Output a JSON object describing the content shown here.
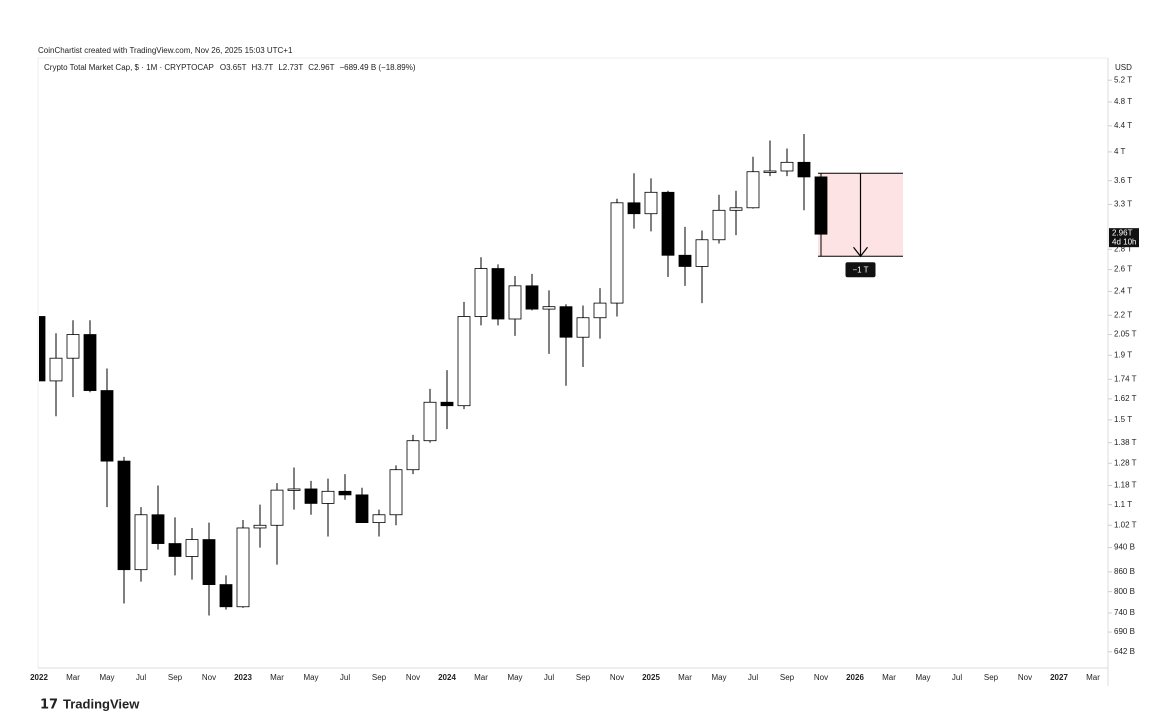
{
  "chart_data": {
    "type": "candlestick",
    "credit": "CoinChartist created with TradingView.com, Nov 26, 2025 15:03 UTC+1",
    "symbol": "Crypto Total Market Cap, $ · 1M · CRYPTOCAP",
    "ohlc_header": [
      "O3.65T",
      "H3.7T",
      "L2.73T",
      "C2.96T"
    ],
    "change": "−689.49 B (−18.89%)",
    "currency": "USD",
    "brand": "TradingView",
    "last_price_label": "2.96T",
    "countdown": "4d 10h",
    "categories": [
      "2022",
      null,
      "Mar",
      null,
      "May",
      null,
      "Jul",
      null,
      "Sep",
      null,
      "Nov",
      null,
      "2023",
      null,
      "Mar",
      null,
      "May",
      null,
      "Jul",
      null,
      "Sep",
      null,
      "Nov",
      null,
      "2024",
      null,
      "Mar",
      null,
      "May",
      null,
      "Jul",
      null,
      "Sep",
      null,
      "Nov",
      null,
      "2025",
      null,
      "Mar",
      null,
      "May",
      null,
      "Jul",
      null,
      "Sep",
      null,
      "Nov",
      null,
      "2026",
      null,
      "Mar",
      null,
      "May",
      null,
      "Jul",
      null,
      "Sep",
      null,
      "Nov",
      null,
      "2027",
      null,
      "Mar"
    ],
    "open": [
      2190,
      1730,
      1880,
      2050,
      1670,
      1290,
      867,
      1060,
      954,
      910,
      968,
      821,
      757,
      1010,
      1020,
      1160,
      1165,
      1105,
      1155,
      1140,
      1030,
      1060,
      1250,
      1390,
      1600,
      1580,
      2190,
      2610,
      2170,
      2450,
      2250,
      2270,
      2030,
      2180,
      2300,
      3320,
      3190,
      3450,
      2740,
      2630,
      2900,
      3230,
      3260,
      3720,
      3730,
      3850,
      3650,
      null,
      null,
      null,
      null,
      null,
      null,
      null,
      null,
      null,
      null,
      null,
      null,
      null,
      null,
      null,
      null
    ],
    "high": [
      2190,
      2060,
      2160,
      2160,
      1810,
      1310,
      1090,
      1180,
      1050,
      1010,
      1030,
      849,
      1040,
      1100,
      1190,
      1260,
      1200,
      1210,
      1230,
      1170,
      1080,
      1270,
      1420,
      1680,
      1800,
      2310,
      2720,
      2650,
      2540,
      2560,
      2410,
      2290,
      2280,
      2430,
      3370,
      3700,
      3630,
      3470,
      3040,
      3000,
      3420,
      3470,
      3930,
      4170,
      4050,
      4270,
      3700,
      null,
      null,
      null,
      null,
      null,
      null,
      null,
      null,
      null,
      null,
      null,
      null,
      null,
      null,
      null,
      null
    ],
    "low": [
      1730,
      1520,
      1630,
      1660,
      1090,
      766,
      830,
      933,
      849,
      836,
      733,
      749,
      754,
      940,
      883,
      1080,
      1060,
      979,
      1120,
      1030,
      979,
      1020,
      1230,
      1380,
      1450,
      1560,
      2120,
      2120,
      2040,
      2240,
      1910,
      1700,
      1820,
      2020,
      2190,
      3020,
      2990,
      2530,
      2450,
      2300,
      2860,
      2950,
      3250,
      3660,
      3660,
      3230,
      2730,
      null,
      null,
      null,
      null,
      null,
      null,
      null,
      null,
      null,
      null,
      null,
      null,
      null,
      null,
      null,
      null
    ],
    "close": [
      1730,
      1880,
      2050,
      1670,
      1290,
      867,
      1060,
      954,
      910,
      968,
      821,
      757,
      1010,
      1020,
      1160,
      1165,
      1105,
      1155,
      1140,
      1030,
      1060,
      1250,
      1390,
      1600,
      1580,
      2190,
      2610,
      2170,
      2450,
      2250,
      2270,
      2030,
      2180,
      2300,
      3320,
      3190,
      3450,
      2740,
      2630,
      2900,
      3230,
      3260,
      3720,
      3730,
      3850,
      3650,
      2960,
      null,
      null,
      null,
      null,
      null,
      null,
      null,
      null,
      null,
      null,
      null,
      null,
      null,
      null,
      null,
      null
    ],
    "up_color": "#ffffff",
    "down_color": "#000000",
    "border_color": "#000000",
    "log_scale": true,
    "ylim": [
      605,
      5640
    ],
    "yticks": [
      {
        "value": 642,
        "label": "642 B"
      },
      {
        "value": 690,
        "label": "690 B"
      },
      {
        "value": 740,
        "label": "740 B"
      },
      {
        "value": 800,
        "label": "800 B"
      },
      {
        "value": 860,
        "label": "860 B"
      },
      {
        "value": 940,
        "label": "940 B"
      },
      {
        "value": 1020,
        "label": "1.02 T"
      },
      {
        "value": 1100,
        "label": "1.1 T"
      },
      {
        "value": 1180,
        "label": "1.18 T"
      },
      {
        "value": 1280,
        "label": "1.28 T"
      },
      {
        "value": 1380,
        "label": "1.38 T"
      },
      {
        "value": 1500,
        "label": "1.5 T"
      },
      {
        "value": 1620,
        "label": "1.62 T"
      },
      {
        "value": 1740,
        "label": "1.74 T"
      },
      {
        "value": 1900,
        "label": "1.9 T"
      },
      {
        "value": 2050,
        "label": "2.05 T"
      },
      {
        "value": 2200,
        "label": "2.2 T"
      },
      {
        "value": 2400,
        "label": "2.4 T"
      },
      {
        "value": 2600,
        "label": "2.6 T"
      },
      {
        "value": 2800,
        "label": "2.8 T"
      },
      {
        "value": 3300,
        "label": "3.3 T"
      },
      {
        "value": 3600,
        "label": "3.6 T"
      },
      {
        "value": 4000,
        "label": "4 T"
      },
      {
        "value": 4400,
        "label": "4.4 T"
      },
      {
        "value": 4800,
        "label": "4.8 T"
      },
      {
        "value": 5200,
        "label": "5.2 T"
      }
    ],
    "measure": {
      "from": 3700,
      "to": 2730,
      "label": "−1 T",
      "color": "#fde3e3"
    }
  }
}
